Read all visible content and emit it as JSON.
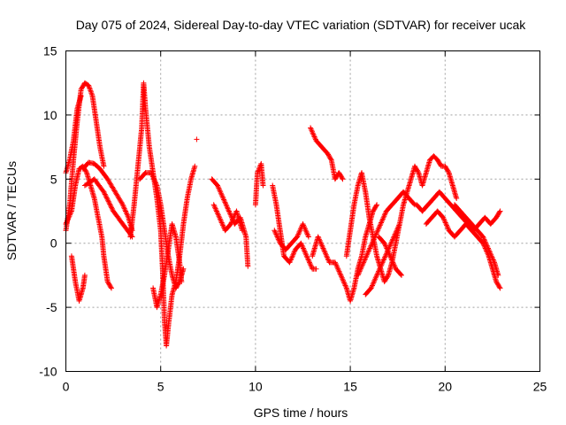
{
  "chart_data": {
    "type": "scatter",
    "title": "Day 075 of 2024, Sidereal Day-to-day VTEC variation (SDTVAR) for receiver ucak",
    "xlabel": "GPS time / hours",
    "ylabel": "SDTVAR / TECUs",
    "xlim": [
      0,
      25
    ],
    "ylim": [
      -10,
      15
    ],
    "xticks": [
      0,
      5,
      10,
      15,
      20,
      25
    ],
    "yticks": [
      -10,
      -5,
      0,
      5,
      10,
      15
    ],
    "grid": true,
    "marker": "+",
    "color": "#ff0000",
    "series": [
      {
        "name": "SDTVAR",
        "segments": [
          [
            [
              0.0,
              1.0
            ],
            [
              0.2,
              3.0
            ],
            [
              0.4,
              6.5
            ],
            [
              0.6,
              9.5
            ],
            [
              0.8,
              12.0
            ],
            [
              1.0,
              12.5
            ],
            [
              1.2,
              12.3
            ],
            [
              1.4,
              11.5
            ],
            [
              1.6,
              9.5
            ],
            [
              1.8,
              7.5
            ],
            [
              2.0,
              6.0
            ]
          ],
          [
            [
              0.0,
              5.5
            ],
            [
              0.2,
              6.5
            ],
            [
              0.4,
              8.0
            ],
            [
              0.6,
              10.5
            ],
            [
              0.8,
              11.5
            ]
          ],
          [
            [
              0.0,
              1.5
            ],
            [
              0.3,
              2.5
            ],
            [
              0.5,
              4.5
            ],
            [
              0.7,
              5.8
            ],
            [
              0.9,
              6.0
            ],
            [
              1.1,
              5.5
            ],
            [
              1.3,
              4.5
            ],
            [
              1.5,
              3.5
            ],
            [
              1.7,
              2.0
            ],
            [
              1.9,
              0.5
            ],
            [
              2.0,
              -1.0
            ],
            [
              2.2,
              -3.0
            ],
            [
              2.4,
              -3.5
            ]
          ],
          [
            [
              0.3,
              -1.0
            ],
            [
              0.5,
              -3.0
            ],
            [
              0.7,
              -4.5
            ],
            [
              0.9,
              -3.5
            ],
            [
              1.0,
              -2.5
            ]
          ],
          [
            [
              0.9,
              5.8
            ],
            [
              1.2,
              6.3
            ],
            [
              1.5,
              6.2
            ],
            [
              1.8,
              5.8
            ],
            [
              2.2,
              5.0
            ],
            [
              2.6,
              4.0
            ],
            [
              3.0,
              3.0
            ],
            [
              3.3,
              2.0
            ],
            [
              3.5,
              1.0
            ]
          ],
          [
            [
              1.0,
              4.5
            ],
            [
              1.5,
              5.0
            ],
            [
              2.0,
              4.0
            ],
            [
              2.5,
              2.5
            ],
            [
              3.0,
              1.5
            ],
            [
              3.5,
              0.5
            ]
          ],
          [
            [
              3.4,
              0.5
            ],
            [
              3.6,
              3.0
            ],
            [
              3.8,
              6.0
            ],
            [
              4.0,
              9.0
            ],
            [
              4.1,
              12.5
            ],
            [
              4.2,
              10.5
            ],
            [
              4.4,
              7.5
            ],
            [
              4.6,
              5.5
            ],
            [
              4.8,
              3.5
            ],
            [
              5.0,
              1.0
            ],
            [
              5.1,
              -2.0
            ],
            [
              5.2,
              -6.0
            ],
            [
              5.3,
              -8.0
            ],
            [
              5.4,
              -6.5
            ],
            [
              5.6,
              -4.0
            ],
            [
              5.8,
              -3.0
            ],
            [
              6.0,
              -1.0
            ],
            [
              6.2,
              1.5
            ],
            [
              6.4,
              3.5
            ],
            [
              6.6,
              5.0
            ],
            [
              6.8,
              6.0
            ]
          ],
          [
            [
              3.9,
              5.0
            ],
            [
              4.2,
              5.5
            ],
            [
              4.5,
              5.5
            ],
            [
              4.8,
              4.5
            ],
            [
              5.0,
              3.0
            ],
            [
              5.2,
              1.0
            ],
            [
              5.4,
              -1.0
            ],
            [
              5.6,
              -2.5
            ],
            [
              5.8,
              -3.5
            ],
            [
              6.0,
              -3.0
            ],
            [
              6.2,
              -2.0
            ]
          ],
          [
            [
              4.6,
              -3.5
            ],
            [
              4.8,
              -5.0
            ],
            [
              5.0,
              -4.0
            ],
            [
              5.2,
              -2.5
            ],
            [
              5.4,
              -0.5
            ],
            [
              5.6,
              1.5
            ],
            [
              5.8,
              0.5
            ],
            [
              6.0,
              -1.5
            ],
            [
              6.1,
              -3.0
            ]
          ],
          [
            [
              6.9,
              8.1
            ]
          ],
          [
            [
              7.7,
              5.0
            ],
            [
              8.0,
              4.5
            ],
            [
              8.3,
              3.5
            ],
            [
              8.6,
              2.5
            ],
            [
              8.9,
              1.5
            ],
            [
              9.2,
              2.0
            ],
            [
              9.5,
              0.5
            ],
            [
              9.6,
              -1.8
            ]
          ],
          [
            [
              7.8,
              3.0
            ],
            [
              8.1,
              2.0
            ],
            [
              8.4,
              1.0
            ],
            [
              8.7,
              1.5
            ],
            [
              9.0,
              2.5
            ],
            [
              9.3,
              1.0
            ]
          ],
          [
            [
              10.0,
              3.0
            ],
            [
              10.1,
              5.5
            ],
            [
              10.3,
              6.2
            ],
            [
              10.4,
              4.5
            ]
          ],
          [
            [
              10.9,
              4.5
            ],
            [
              11.1,
              3.0
            ],
            [
              11.3,
              1.0
            ],
            [
              11.5,
              -1.0
            ],
            [
              11.8,
              -1.5
            ],
            [
              12.1,
              -0.5
            ],
            [
              12.4,
              0.0
            ],
            [
              12.7,
              -1.0
            ],
            [
              13.0,
              -2.0
            ],
            [
              13.2,
              -2.0
            ]
          ],
          [
            [
              11.0,
              1.0
            ],
            [
              11.3,
              0.0
            ],
            [
              11.6,
              -0.5
            ],
            [
              11.9,
              0.0
            ],
            [
              12.2,
              0.5
            ],
            [
              12.5,
              1.5
            ],
            [
              12.8,
              0.5
            ]
          ],
          [
            [
              12.9,
              9.0
            ],
            [
              13.2,
              8.0
            ],
            [
              13.5,
              7.5
            ],
            [
              13.8,
              7.0
            ],
            [
              14.0,
              6.5
            ],
            [
              14.2,
              5.0
            ],
            [
              14.4,
              5.5
            ],
            [
              14.6,
              5.0
            ]
          ],
          [
            [
              13.0,
              -1.0
            ],
            [
              13.3,
              0.5
            ],
            [
              13.6,
              -0.5
            ],
            [
              13.9,
              -1.5
            ],
            [
              14.2,
              -1.5
            ],
            [
              14.5,
              -2.5
            ],
            [
              14.8,
              -3.5
            ],
            [
              15.0,
              -4.5
            ],
            [
              15.2,
              -3.5
            ],
            [
              15.4,
              -2.0
            ],
            [
              15.6,
              -1.0
            ],
            [
              15.8,
              0.5
            ],
            [
              16.0,
              1.5
            ],
            [
              16.2,
              2.5
            ],
            [
              16.4,
              3.0
            ]
          ],
          [
            [
              14.8,
              -1.0
            ],
            [
              15.0,
              1.0
            ],
            [
              15.2,
              3.0
            ],
            [
              15.4,
              4.5
            ],
            [
              15.6,
              5.5
            ],
            [
              15.8,
              4.0
            ],
            [
              16.0,
              2.0
            ],
            [
              16.2,
              0.5
            ],
            [
              16.4,
              -1.0
            ],
            [
              16.6,
              -2.0
            ],
            [
              16.8,
              -3.0
            ],
            [
              17.0,
              -2.5
            ],
            [
              17.2,
              -1.5
            ],
            [
              17.4,
              0.0
            ],
            [
              17.6,
              1.5
            ],
            [
              17.8,
              3.0
            ],
            [
              18.0,
              4.0
            ],
            [
              18.2,
              5.0
            ],
            [
              18.4,
              6.0
            ],
            [
              18.6,
              5.5
            ],
            [
              18.8,
              4.5
            ],
            [
              19.0,
              5.5
            ],
            [
              19.2,
              6.5
            ],
            [
              19.4,
              6.8
            ],
            [
              19.6,
              6.5
            ],
            [
              19.8,
              6.0
            ],
            [
              20.0,
              6.0
            ],
            [
              20.2,
              5.5
            ],
            [
              20.4,
              4.5
            ],
            [
              20.6,
              3.5
            ]
          ],
          [
            [
              15.4,
              -2.5
            ],
            [
              15.7,
              -1.5
            ],
            [
              16.0,
              -0.5
            ],
            [
              16.3,
              0.5
            ],
            [
              16.6,
              1.5
            ],
            [
              16.9,
              2.5
            ],
            [
              17.2,
              3.0
            ],
            [
              17.5,
              3.5
            ],
            [
              17.8,
              4.0
            ],
            [
              18.1,
              3.5
            ],
            [
              18.4,
              3.0
            ]
          ],
          [
            [
              15.8,
              -4.0
            ],
            [
              16.1,
              -3.5
            ],
            [
              16.4,
              -2.5
            ],
            [
              16.7,
              -1.5
            ],
            [
              17.0,
              -0.5
            ],
            [
              17.3,
              0.5
            ],
            [
              17.6,
              1.5
            ]
          ],
          [
            [
              16.5,
              0.5
            ],
            [
              16.8,
              0.0
            ],
            [
              17.1,
              -1.0
            ],
            [
              17.4,
              -2.0
            ],
            [
              17.7,
              -2.5
            ]
          ],
          [
            [
              18.5,
              3.0
            ],
            [
              18.8,
              2.5
            ],
            [
              19.1,
              3.0
            ],
            [
              19.4,
              3.5
            ],
            [
              19.7,
              4.0
            ],
            [
              20.0,
              3.5
            ],
            [
              20.3,
              3.0
            ],
            [
              20.6,
              2.5
            ],
            [
              20.9,
              2.0
            ],
            [
              21.2,
              1.5
            ],
            [
              21.5,
              1.0
            ],
            [
              21.8,
              1.5
            ],
            [
              22.1,
              2.0
            ],
            [
              22.4,
              1.5
            ],
            [
              22.7,
              2.0
            ],
            [
              22.9,
              2.5
            ]
          ],
          [
            [
              19.0,
              1.5
            ],
            [
              19.3,
              2.0
            ],
            [
              19.6,
              2.5
            ],
            [
              19.9,
              2.0
            ],
            [
              20.2,
              1.0
            ],
            [
              20.5,
              0.5
            ],
            [
              20.8,
              1.0
            ],
            [
              21.1,
              1.5
            ],
            [
              21.4,
              1.0
            ],
            [
              21.7,
              0.5
            ],
            [
              22.0,
              0.0
            ],
            [
              22.3,
              -1.0
            ],
            [
              22.5,
              -2.0
            ],
            [
              22.7,
              -3.0
            ],
            [
              22.9,
              -3.5
            ]
          ],
          [
            [
              20.5,
              3.0
            ],
            [
              20.8,
              2.5
            ],
            [
              21.1,
              2.0
            ],
            [
              21.4,
              1.5
            ],
            [
              21.7,
              1.0
            ],
            [
              22.0,
              0.5
            ],
            [
              22.3,
              -0.5
            ],
            [
              22.6,
              -1.5
            ],
            [
              22.8,
              -2.5
            ]
          ]
        ]
      }
    ]
  }
}
